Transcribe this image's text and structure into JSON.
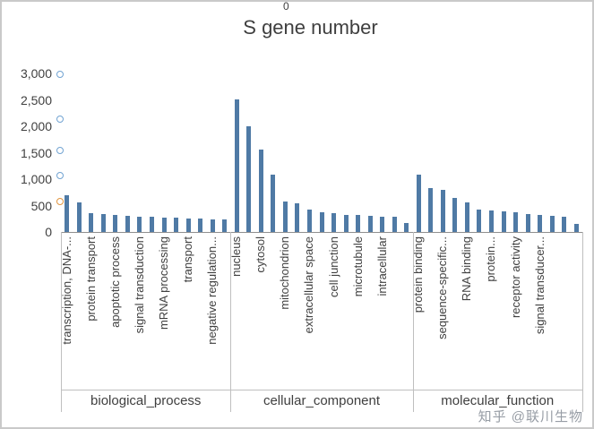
{
  "stray_text": "0",
  "watermark": "知乎 @联川生物",
  "chart_data": {
    "type": "bar",
    "title": "S gene number",
    "xlabel": "",
    "ylabel": "",
    "ylim": [
      0,
      3000
    ],
    "ytick_values": [
      0,
      500,
      1000,
      1500,
      2000,
      2500,
      3000
    ],
    "ytick_labels": [
      "0",
      "500",
      "1,000",
      "1,500",
      "2,000",
      "2,500",
      "3,000"
    ],
    "grid": false,
    "legend_position": "none",
    "bar_color": "#4f7aa5",
    "groups": [
      {
        "name": "biological_process",
        "bars": [
          {
            "label": "transcription, DNA-...",
            "value": 700
          },
          {
            "label": "",
            "value": 560
          },
          {
            "label": "protein transport",
            "value": 360
          },
          {
            "label": "",
            "value": 340
          },
          {
            "label": "apoptotic process",
            "value": 320
          },
          {
            "label": "",
            "value": 305
          },
          {
            "label": "signal transduction",
            "value": 295
          },
          {
            "label": "",
            "value": 285
          },
          {
            "label": "mRNA processing",
            "value": 275
          },
          {
            "label": "",
            "value": 265
          },
          {
            "label": "transport",
            "value": 260
          },
          {
            "label": "",
            "value": 255
          },
          {
            "label": "negative regulation...",
            "value": 245
          },
          {
            "label": "",
            "value": 235
          }
        ]
      },
      {
        "name": "cellular_component",
        "bars": [
          {
            "label": "nucleus",
            "value": 2500
          },
          {
            "label": "",
            "value": 2000
          },
          {
            "label": "cytosol",
            "value": 1560
          },
          {
            "label": "",
            "value": 1080
          },
          {
            "label": "mitochondrion",
            "value": 580
          },
          {
            "label": "",
            "value": 540
          },
          {
            "label": "extracellular space",
            "value": 430
          },
          {
            "label": "",
            "value": 370
          },
          {
            "label": "cell junction",
            "value": 350
          },
          {
            "label": "",
            "value": 330
          },
          {
            "label": "microtubule",
            "value": 315
          },
          {
            "label": "",
            "value": 300
          },
          {
            "label": "intracellular",
            "value": 290
          },
          {
            "label": "",
            "value": 280
          },
          {
            "label": "",
            "value": 175
          }
        ]
      },
      {
        "name": "molecular_function",
        "bars": [
          {
            "label": "protein binding",
            "value": 1080
          },
          {
            "label": "",
            "value": 830
          },
          {
            "label": "sequence-specific...",
            "value": 800
          },
          {
            "label": "",
            "value": 650
          },
          {
            "label": "RNA binding",
            "value": 560
          },
          {
            "label": "",
            "value": 430
          },
          {
            "label": "protein...",
            "value": 410
          },
          {
            "label": "",
            "value": 390
          },
          {
            "label": "receptor activity",
            "value": 365
          },
          {
            "label": "",
            "value": 345
          },
          {
            "label": "signal transducer...",
            "value": 325
          },
          {
            "label": "",
            "value": 305
          },
          {
            "label": "",
            "value": 285
          },
          {
            "label": "",
            "value": 160
          }
        ]
      }
    ],
    "left_markers": [
      {
        "value": 2980,
        "color": "#71a3d2"
      },
      {
        "value": 2130,
        "color": "#71a3d2"
      },
      {
        "value": 1550,
        "color": "#71a3d2"
      },
      {
        "value": 1060,
        "color": "#71a3d2"
      },
      {
        "value": 580,
        "color": "#e0953f"
      }
    ]
  }
}
